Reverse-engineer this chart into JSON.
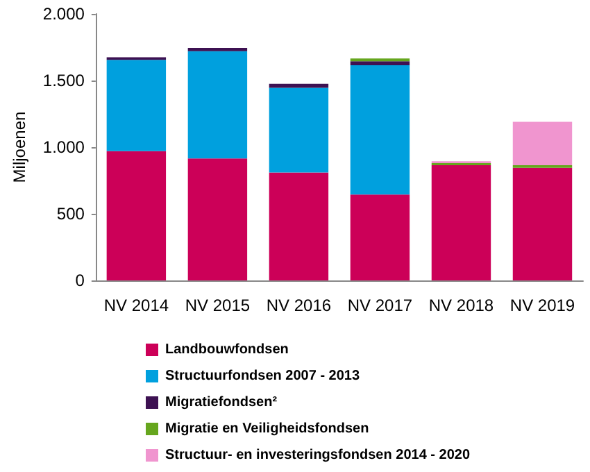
{
  "chart_data": {
    "type": "bar",
    "stacked": true,
    "ylabel": "Miljoenen",
    "categories": [
      "NV 2014",
      "NV 2015",
      "NV 2016",
      "NV 2017",
      "NV 2018",
      "NV 2019"
    ],
    "series": [
      {
        "name": "Landbouwfondsen",
        "color": "#cc0058",
        "values": [
          970,
          915,
          810,
          645,
          865,
          845
        ]
      },
      {
        "name": "Structuurfondsen 2007 - 2013",
        "color": "#00a0de",
        "values": [
          685,
          805,
          635,
          970,
          null,
          null
        ]
      },
      {
        "name": "Migratiefondsen²",
        "color": "#3d1152",
        "values": [
          20,
          25,
          30,
          30,
          null,
          null
        ]
      },
      {
        "name": "Migratie en Veiligheidsfondsen",
        "color": "#66a61e",
        "values": [
          null,
          null,
          null,
          20,
          15,
          20
        ]
      },
      {
        "name": "Structuur- en investeringsfondsen 2014 - 2020",
        "color": "#f095cf",
        "values": [
          null,
          null,
          null,
          null,
          15,
          325
        ]
      }
    ],
    "ylim": [
      0,
      2000
    ],
    "yticks": [
      0,
      {
        "value": 500,
        "label": "500"
      },
      {
        "value": 1000,
        "label": "1.000"
      },
      {
        "value": 1500,
        "label": "1.500"
      },
      {
        "value": 2000,
        "label": "2.000"
      }
    ],
    "grid": false,
    "legend": "bottom"
  }
}
